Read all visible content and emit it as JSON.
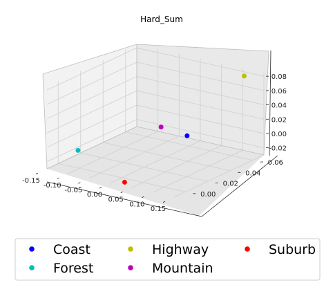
{
  "chart_data": {
    "type": "scatter",
    "title": "Hard_Sum",
    "xlabel": "",
    "ylabel": "",
    "zlabel": "",
    "projection": "3d",
    "grid": true,
    "legend_position": "bottom",
    "xlim": [
      -0.15,
      0.15
    ],
    "ylim": [
      -0.01,
      0.07
    ],
    "zlim": [
      -0.03,
      0.085
    ],
    "x_ticks": [
      "-0.15",
      "-0.10",
      "-0.05",
      "0.00",
      "0.05",
      "0.10",
      "0.15"
    ],
    "y_ticks": [
      "0.00",
      "0.02",
      "0.04",
      "0.06"
    ],
    "z_ticks": [
      "-0.02",
      "0.00",
      "0.02",
      "0.04",
      "0.06",
      "0.08"
    ],
    "series": [
      {
        "name": "Coast",
        "color": "#0000ff",
        "x": 0.035,
        "y": 0.045,
        "z": 0.0
      },
      {
        "name": "Forest",
        "color": "#00bfbf",
        "x": -0.09,
        "y": -0.005,
        "z": 0.0
      },
      {
        "name": "Highway",
        "color": "#bfbf00",
        "x": 0.13,
        "y": 0.06,
        "z": 0.085
      },
      {
        "name": "Mountain",
        "color": "#bf00bf",
        "x": 0.0,
        "y": 0.035,
        "z": 0.015
      },
      {
        "name": "Suburb",
        "color": "#ff0000",
        "x": 0.02,
        "y": -0.005,
        "z": -0.03
      }
    ]
  }
}
